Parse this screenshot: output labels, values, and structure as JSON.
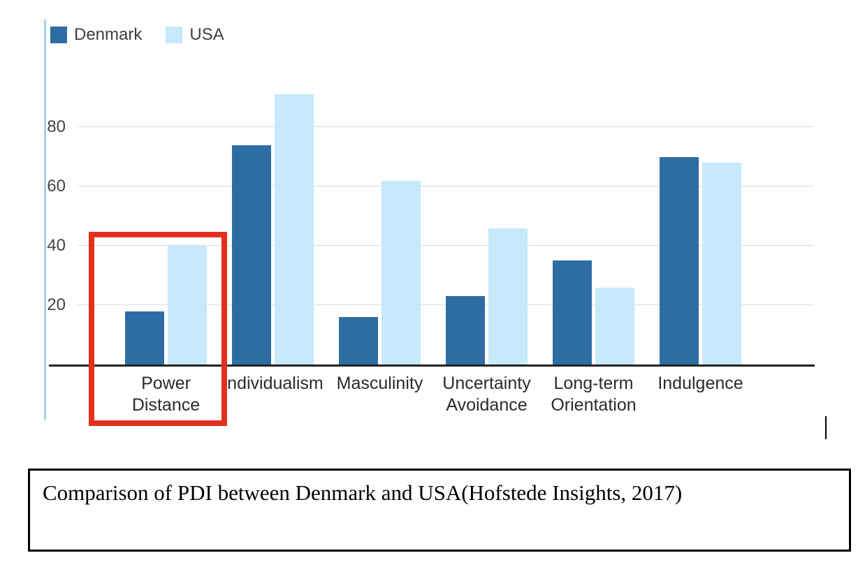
{
  "figure": {
    "caption": "Comparison of PDI between Denmark and USA(Hofstede Insights, 2017)"
  },
  "colors": {
    "denmark": "#2e6da4",
    "usa": "#c7e9fb",
    "gridline": "#d9dadc",
    "x_axis": "#222222",
    "y_axis_line": "#a9cfe8",
    "annotation_red": "#e2301d"
  },
  "chart_data": {
    "type": "bar",
    "title": "",
    "xlabel": "",
    "ylabel": "",
    "categories": [
      "Power Distance",
      "Individualism",
      "Masculinity",
      "Uncertainty Avoidance",
      "Long-term Orientation",
      "Indulgence"
    ],
    "category_lines": [
      [
        "Power",
        "Distance"
      ],
      [
        "Individualism"
      ],
      [
        "Masculinity"
      ],
      [
        "Uncertainty",
        "Avoidance"
      ],
      [
        "Long-term",
        "Orientation"
      ],
      [
        "Indulgence"
      ]
    ],
    "series": [
      {
        "name": "Denmark",
        "color": "#2e6da4",
        "values": [
          18,
          74,
          16,
          23,
          35,
          70
        ]
      },
      {
        "name": "USA",
        "color": "#c7e9fb",
        "values": [
          40,
          91,
          62,
          46,
          26,
          68
        ]
      }
    ],
    "ylim": [
      0,
      100
    ],
    "yticks": [
      20,
      40,
      60,
      80
    ],
    "grid": true,
    "legend_position": "top-left",
    "annotation": "red rectangle highlighting the Power Distance bar pair"
  }
}
